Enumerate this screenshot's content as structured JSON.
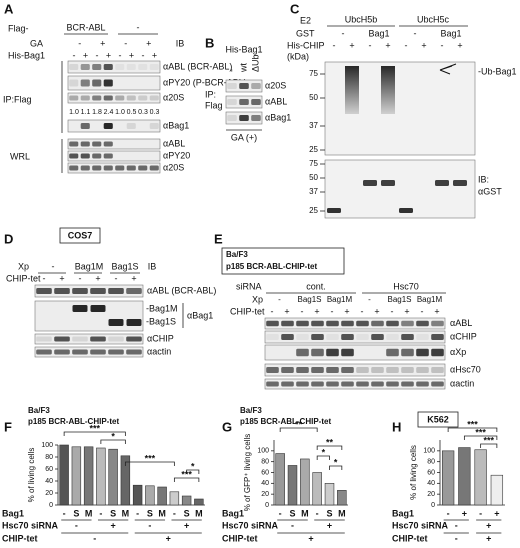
{
  "A": {
    "label": "A",
    "flag": "Flag-",
    "construct": "BCR-ABL",
    "construct_neg": "-",
    "ga": "GA",
    "ga_lanes": [
      "-",
      "+",
      "-",
      "+"
    ],
    "ib": "IB",
    "his": "His-Bag1",
    "his_lanes": [
      "-",
      "+",
      "-",
      "+",
      "-",
      "+",
      "-",
      "+"
    ],
    "blots": [
      "αABL (BCR-ABL)",
      "αPY20 (P-BCR-ABL)",
      "α20S",
      "αBag1",
      "αABL",
      "αPY20",
      "α20S"
    ],
    "quant": [
      "1.0",
      "1.1",
      "1.8",
      "2.4",
      "1.0",
      "0.5",
      "0.3",
      "0.3"
    ],
    "groups": [
      "IP:Flag",
      "WRL"
    ]
  },
  "B": {
    "label": "B",
    "his": "His-Bag1",
    "lanes": [
      "-",
      "wt",
      "ΔUb"
    ],
    "blots": [
      "α20S",
      "αABL",
      "αBag1"
    ],
    "group": [
      "IP:",
      "Flag"
    ],
    "footer": "GA (+)"
  },
  "C": {
    "label": "C",
    "e2": "E2",
    "e2_groups": [
      "UbcH5b",
      "UbcH5c"
    ],
    "gst": "GST",
    "gst_lanes": [
      "-",
      "Bag1",
      "-",
      "Bag1"
    ],
    "his": "His-CHIP",
    "his_lanes": [
      "-",
      "+",
      "-",
      "+",
      "-",
      "+",
      "-",
      "+"
    ],
    "kda": "(kDa)",
    "kda_top": [
      75,
      50,
      37,
      25
    ],
    "kda_bottom": [
      75,
      50,
      37,
      25
    ],
    "band_label": "-Ub-Bag1",
    "ib": [
      "IB:",
      "αGST"
    ]
  },
  "D": {
    "label": "D",
    "cell": "COS7",
    "xp": "Xp",
    "xp_lanes": [
      "-",
      "Bag1M",
      "Bag1S"
    ],
    "chip": "CHIP-tet",
    "chip_lanes": [
      "-",
      "+",
      "-",
      "+",
      "-",
      "+"
    ],
    "ib": "IB",
    "blots": [
      "αABL (BCR-ABL)",
      "αBag1",
      "αCHIP",
      "αactin"
    ],
    "bag1_forms": [
      "-Bag1M",
      "-Bag1S"
    ]
  },
  "E": {
    "label": "E",
    "cell": [
      "Ba/F3",
      "p185 BCR-ABL-CHIP-tet"
    ],
    "sirna": "siRNA",
    "sirna_groups": [
      "cont.",
      "Hsc70"
    ],
    "xp": "Xp",
    "xp_lanes": [
      "-",
      "Bag1S",
      "Bag1M",
      "-",
      "Bag1S",
      "Bag1M"
    ],
    "chip": "CHIP-tet",
    "chip_lanes": [
      "-",
      "+",
      "-",
      "+",
      "-",
      "+",
      "-",
      "+",
      "-",
      "+",
      "-",
      "+"
    ],
    "blots": [
      "αABL",
      "αCHIP",
      "αXp",
      "αHsc70",
      "αactin"
    ]
  },
  "chart_data": [
    {
      "type": "bar",
      "panel": "F",
      "title": "Ba/F3",
      "subtitle": "p185 BCR-ABL-CHIP-tet",
      "ylabel": "% of living cells",
      "category_label": "Bag1",
      "categories": [
        "-",
        "S",
        "M",
        "-",
        "S",
        "M",
        "-",
        "S",
        "M",
        "-",
        "S",
        "M"
      ],
      "values": [
        100,
        97,
        97,
        95,
        93,
        82,
        33,
        32,
        30,
        22,
        15,
        10
      ],
      "colors": [
        "#555555",
        "#aaaaaa",
        "#777777",
        "#bbbbbb",
        "#888888",
        "#666666",
        "#555555",
        "#aaaaaa",
        "#777777",
        "#cccccc",
        "#888888",
        "#666666"
      ],
      "rows": [
        {
          "name": "Hsc70 siRNA",
          "labels": [
            "-",
            "+",
            "-",
            "+"
          ]
        },
        {
          "name": "CHIP-tet",
          "labels": [
            "-",
            "+"
          ]
        }
      ],
      "annotations": [
        "***",
        "*",
        "***",
        "*",
        "***"
      ],
      "ylim": [
        0,
        100
      ],
      "yticks": [
        0,
        20,
        40,
        60,
        80,
        100
      ]
    },
    {
      "type": "bar",
      "panel": "G",
      "title": "Ba/F3",
      "subtitle": "p185 BCR-ABL-CHIP-tet",
      "ylabel": "% of GFP⁺ living cells",
      "category_label": "Bag1",
      "categories": [
        "-",
        "S",
        "M",
        "-",
        "S",
        "M"
      ],
      "values": [
        95,
        73,
        85,
        60,
        40,
        27
      ],
      "colors": [
        "#999999",
        "#777777",
        "#aaaaaa",
        "#bbbbbb",
        "#cccccc",
        "#888888"
      ],
      "rows": [
        {
          "name": "Hsc70 siRNA",
          "labels": [
            "-",
            "+"
          ]
        },
        {
          "name": "CHIP-tet",
          "labels": [
            "+"
          ]
        }
      ],
      "annotations": [
        "**",
        "**",
        "*",
        "*"
      ],
      "ylim": [
        0,
        120
      ],
      "yticks": [
        0,
        20,
        40,
        60,
        80,
        100
      ]
    },
    {
      "type": "bar",
      "panel": "H",
      "title": "K562",
      "ylabel": "% of living cells",
      "category_label": "Bag1",
      "categories": [
        "-",
        "+",
        "-",
        "+"
      ],
      "values": [
        100,
        106,
        102,
        55
      ],
      "colors": [
        "#999999",
        "#777777",
        "#bbbbbb",
        "#eeeeee"
      ],
      "rows": [
        {
          "name": "Hsc70 siRNA",
          "labels": [
            "-",
            "+"
          ]
        },
        {
          "name": "CHIP-tet",
          "labels": [
            "-",
            "+"
          ]
        }
      ],
      "annotations": [
        "***",
        "***",
        "***"
      ],
      "ylim": [
        0,
        120
      ],
      "yticks": [
        0,
        20,
        40,
        60,
        80,
        100
      ]
    }
  ]
}
